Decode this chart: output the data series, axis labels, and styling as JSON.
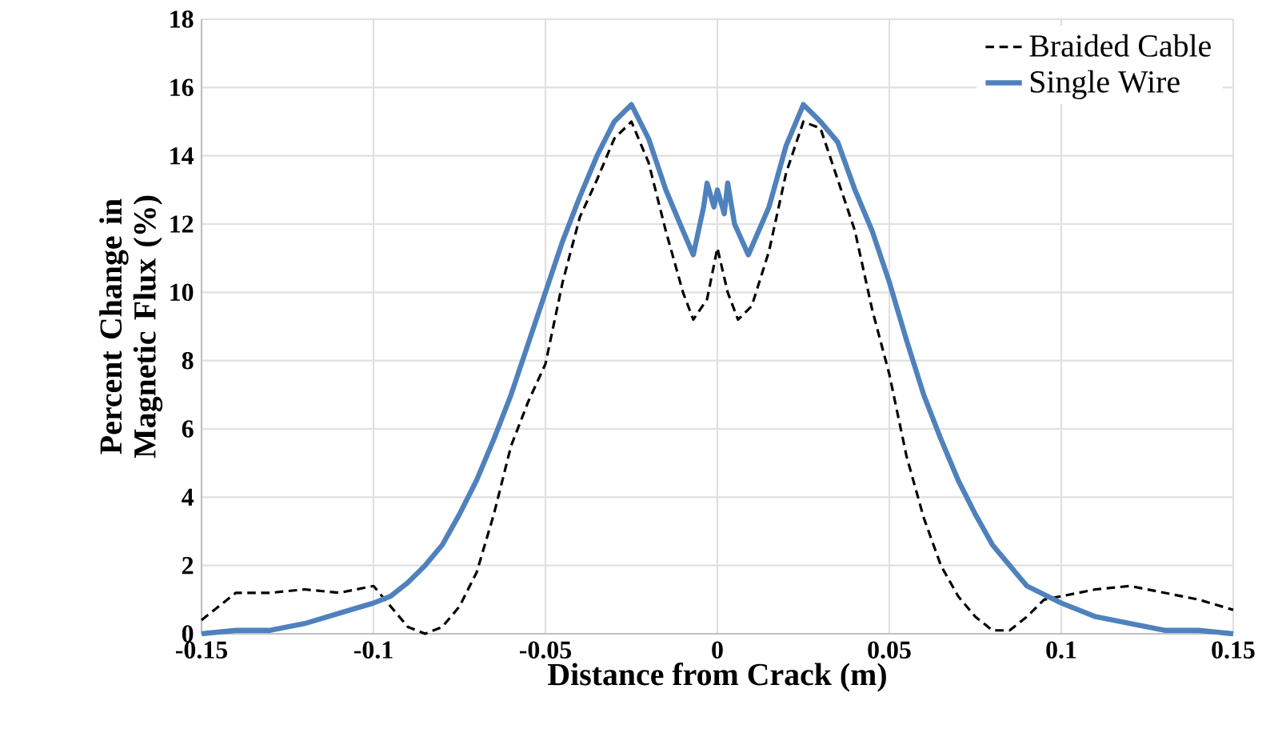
{
  "chart_data": {
    "type": "line",
    "xlabel": "Distance from Crack (m)",
    "ylabel": "Percent Change in Magnetic Flux (%)",
    "xlim": [
      -0.15,
      0.15
    ],
    "xticks": [
      -0.15,
      -0.1,
      -0.05,
      0,
      0.05,
      0.1,
      0.15
    ],
    "ylim": [
      0,
      18
    ],
    "yticks": [
      0,
      2,
      4,
      6,
      8,
      10,
      12,
      14,
      16,
      18
    ],
    "grid": true,
    "legend": "top right",
    "marker": "none",
    "series": [
      {
        "name": "Braided Cable",
        "color": "#000000",
        "line_style": "dashed",
        "x": [
          -0.15,
          -0.145,
          -0.14,
          -0.13,
          -0.12,
          -0.11,
          -0.1,
          -0.095,
          -0.09,
          -0.085,
          -0.08,
          -0.075,
          -0.07,
          -0.065,
          -0.06,
          -0.055,
          -0.05,
          -0.045,
          -0.04,
          -0.035,
          -0.03,
          -0.025,
          -0.02,
          -0.015,
          -0.01,
          -0.007,
          -0.003,
          0,
          0.003,
          0.006,
          0.01,
          0.015,
          0.02,
          0.025,
          0.03,
          0.035,
          0.04,
          0.045,
          0.05,
          0.055,
          0.06,
          0.065,
          0.07,
          0.075,
          0.08,
          0.085,
          0.09,
          0.095,
          0.1,
          0.11,
          0.12,
          0.13,
          0.14,
          0.15
        ],
        "values": [
          0.4,
          0.8,
          1.2,
          1.2,
          1.3,
          1.2,
          1.4,
          0.8,
          0.2,
          0,
          0.2,
          0.8,
          1.8,
          3.5,
          5.5,
          6.8,
          7.9,
          10.3,
          12.2,
          13.3,
          14.5,
          15.0,
          13.8,
          11.8,
          10.0,
          9.2,
          9.8,
          11.3,
          10.0,
          9.2,
          9.6,
          11.2,
          13.5,
          15.0,
          14.8,
          13.3,
          11.8,
          9.5,
          7.6,
          5.2,
          3.4,
          2.0,
          1.1,
          0.5,
          0.1,
          0.1,
          0.5,
          1.0,
          1.1,
          1.3,
          1.4,
          1.2,
          1.0,
          0.7
        ]
      },
      {
        "name": "Single Wire",
        "color": "#4f81bd",
        "line_style": "solid",
        "x": [
          -0.15,
          -0.14,
          -0.13,
          -0.12,
          -0.11,
          -0.1,
          -0.095,
          -0.09,
          -0.085,
          -0.08,
          -0.075,
          -0.07,
          -0.065,
          -0.06,
          -0.055,
          -0.05,
          -0.045,
          -0.04,
          -0.035,
          -0.03,
          -0.025,
          -0.02,
          -0.015,
          -0.01,
          -0.007,
          -0.004,
          -0.003,
          -0.001,
          0,
          0.002,
          0.003,
          0.005,
          0.009,
          0.015,
          0.02,
          0.025,
          0.03,
          0.035,
          0.04,
          0.045,
          0.05,
          0.055,
          0.06,
          0.065,
          0.07,
          0.075,
          0.08,
          0.085,
          0.09,
          0.1,
          0.11,
          0.12,
          0.13,
          0.14,
          0.15
        ],
        "values": [
          0,
          0.1,
          0.1,
          0.3,
          0.6,
          0.9,
          1.1,
          1.5,
          2.0,
          2.6,
          3.5,
          4.5,
          5.7,
          7.0,
          8.5,
          10.0,
          11.5,
          12.8,
          14.0,
          15.0,
          15.5,
          14.5,
          13.0,
          11.8,
          11.1,
          12.5,
          13.2,
          12.5,
          13.0,
          12.3,
          13.2,
          12.0,
          11.1,
          12.5,
          14.3,
          15.5,
          15.0,
          14.4,
          13.0,
          11.8,
          10.3,
          8.6,
          7.0,
          5.7,
          4.5,
          3.5,
          2.6,
          2.0,
          1.4,
          0.9,
          0.5,
          0.3,
          0.1,
          0.1,
          0
        ]
      }
    ]
  }
}
